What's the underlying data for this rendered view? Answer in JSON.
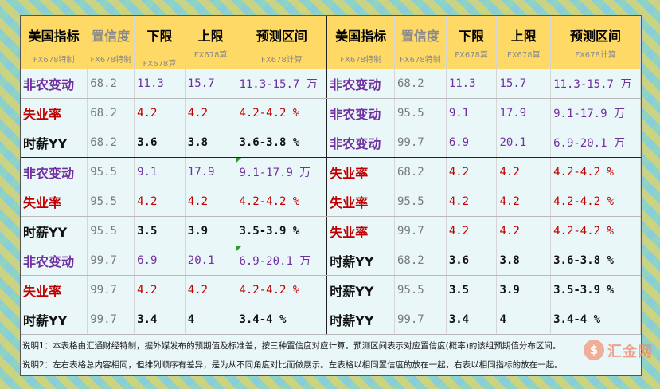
{
  "header": {
    "titles": [
      "美国指标",
      "置信度",
      "下限",
      "上限",
      "预测区间",
      "美国指标",
      "置信度",
      "下限",
      "上限",
      "预测区间"
    ],
    "subtitles": [
      "FX678特制",
      "FX678特制",
      "FX678算",
      "FX678算",
      "FX678计算",
      "FX678特制",
      "FX678特制",
      "FX678算",
      "FX678算",
      "FX678计算"
    ]
  },
  "left_rows": [
    [
      "非农变动",
      "68.2",
      "11.3",
      "15.7",
      "11.3-15.7 万"
    ],
    [
      "失业率",
      "68.2",
      "4.2",
      "4.2",
      "4.2-4.2 %"
    ],
    [
      "时薪YY",
      "68.2",
      "3.6",
      "3.8",
      "3.6-3.8 %"
    ],
    [
      "非农变动",
      "95.5",
      "9.1",
      "17.9",
      "9.1-17.9 万"
    ],
    [
      "失业率",
      "95.5",
      "4.2",
      "4.2",
      "4.2-4.2 %"
    ],
    [
      "时薪YY",
      "95.5",
      "3.5",
      "3.9",
      "3.5-3.9 %"
    ],
    [
      "非农变动",
      "99.7",
      "6.9",
      "20.1",
      "6.9-20.1 万"
    ],
    [
      "失业率",
      "99.7",
      "4.2",
      "4.2",
      "4.2-4.2 %"
    ],
    [
      "时薪YY",
      "99.7",
      "3.4",
      "4",
      "3.4-4 %"
    ]
  ],
  "right_rows": [
    [
      "非农变动",
      "68.2",
      "11.3",
      "15.7",
      "11.3-15.7 万"
    ],
    [
      "非农变动",
      "95.5",
      "9.1",
      "17.9",
      "9.1-17.9 万"
    ],
    [
      "非农变动",
      "99.7",
      "6.9",
      "20.1",
      "6.9-20.1 万"
    ],
    [
      "失业率",
      "68.2",
      "4.2",
      "4.2",
      "4.2-4.2 %"
    ],
    [
      "失业率",
      "95.5",
      "4.2",
      "4.2",
      "4.2-4.2 %"
    ],
    [
      "失业率",
      "99.7",
      "4.2",
      "4.2",
      "4.2-4.2 %"
    ],
    [
      "时薪YY",
      "68.2",
      "3.6",
      "3.8",
      "3.6-3.8 %"
    ],
    [
      "时薪YY",
      "95.5",
      "3.5",
      "3.9",
      "3.5-3.9 %"
    ],
    [
      "时薪YY",
      "99.7",
      "3.4",
      "4",
      "3.4-4 %"
    ]
  ],
  "notes": {
    "note1": "说明1：本表格由汇通财经特制，据外媒发布的预期值及标准差，按三种置信度对应计算。预测区间表示对应置信度(概率)的该组预期值分布区间。",
    "note2": "说明2：左右表格总内容相同，但排列顺序有差异，是为从不同角度对比而做展示。左表格以相同置信度的放在一起，右表以相同指标的放在一起。"
  },
  "watermark": {
    "symbol": "$",
    "text": "汇金网"
  },
  "colors": {
    "nonfarm": "#7030a0",
    "unemployment": "#c00000",
    "wage": "#111111",
    "header_bg": "#ffd966",
    "card_bg": "#eaf7f8"
  }
}
